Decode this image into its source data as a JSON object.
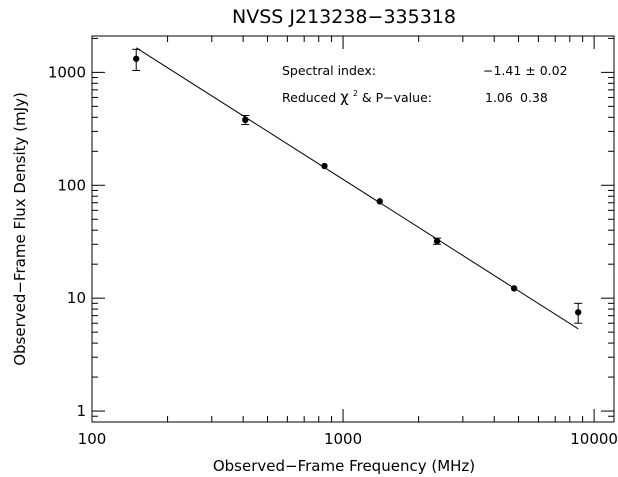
{
  "chart_data": {
    "type": "scatter",
    "title": "NVSS J213238−335318",
    "xlabel": "Observed−Frame Frequency (MHz)",
    "ylabel": "Observed−Frame Flux Density (mJy)",
    "x_scale": "log",
    "y_scale": "log",
    "xlim": [
      100,
      12000
    ],
    "ylim": [
      0.8,
      2100
    ],
    "x_ticks": [
      100,
      1000,
      10000
    ],
    "x_tick_labels": [
      "100",
      "1000",
      "10000"
    ],
    "y_ticks": [
      1,
      10,
      100,
      1000
    ],
    "y_tick_labels": [
      "1",
      "10",
      "100",
      "1000"
    ],
    "grid": false,
    "points": [
      {
        "x": 150,
        "y": 1320,
        "err_low": 280,
        "err_high": 280
      },
      {
        "x": 408,
        "y": 380,
        "err_low": 35,
        "err_high": 35
      },
      {
        "x": 843,
        "y": 148,
        "err_low": 6,
        "err_high": 6
      },
      {
        "x": 1400,
        "y": 72,
        "err_low": 3,
        "err_high": 3
      },
      {
        "x": 2368,
        "y": 32,
        "err_low": 2,
        "err_high": 2
      },
      {
        "x": 4800,
        "y": 12.2,
        "err_low": 0.5,
        "err_high": 0.5
      },
      {
        "x": 8640,
        "y": 7.5,
        "err_low": 1.5,
        "err_high": 1.5
      }
    ],
    "fit_line": {
      "x": [
        150,
        8640
      ],
      "y": [
        1650,
        5.35
      ]
    },
    "annotations": {
      "spectral_index_label": "Spectral index:",
      "spectral_index_value": "−1.41 ± 0.02",
      "chi2_label_pre": "Reduced ",
      "chi2_symbol": "χ",
      "chi2_exp": "2",
      "chi2_label_post": " & P−value:",
      "chi2_value": "1.06",
      "p_value": "0.38"
    }
  }
}
